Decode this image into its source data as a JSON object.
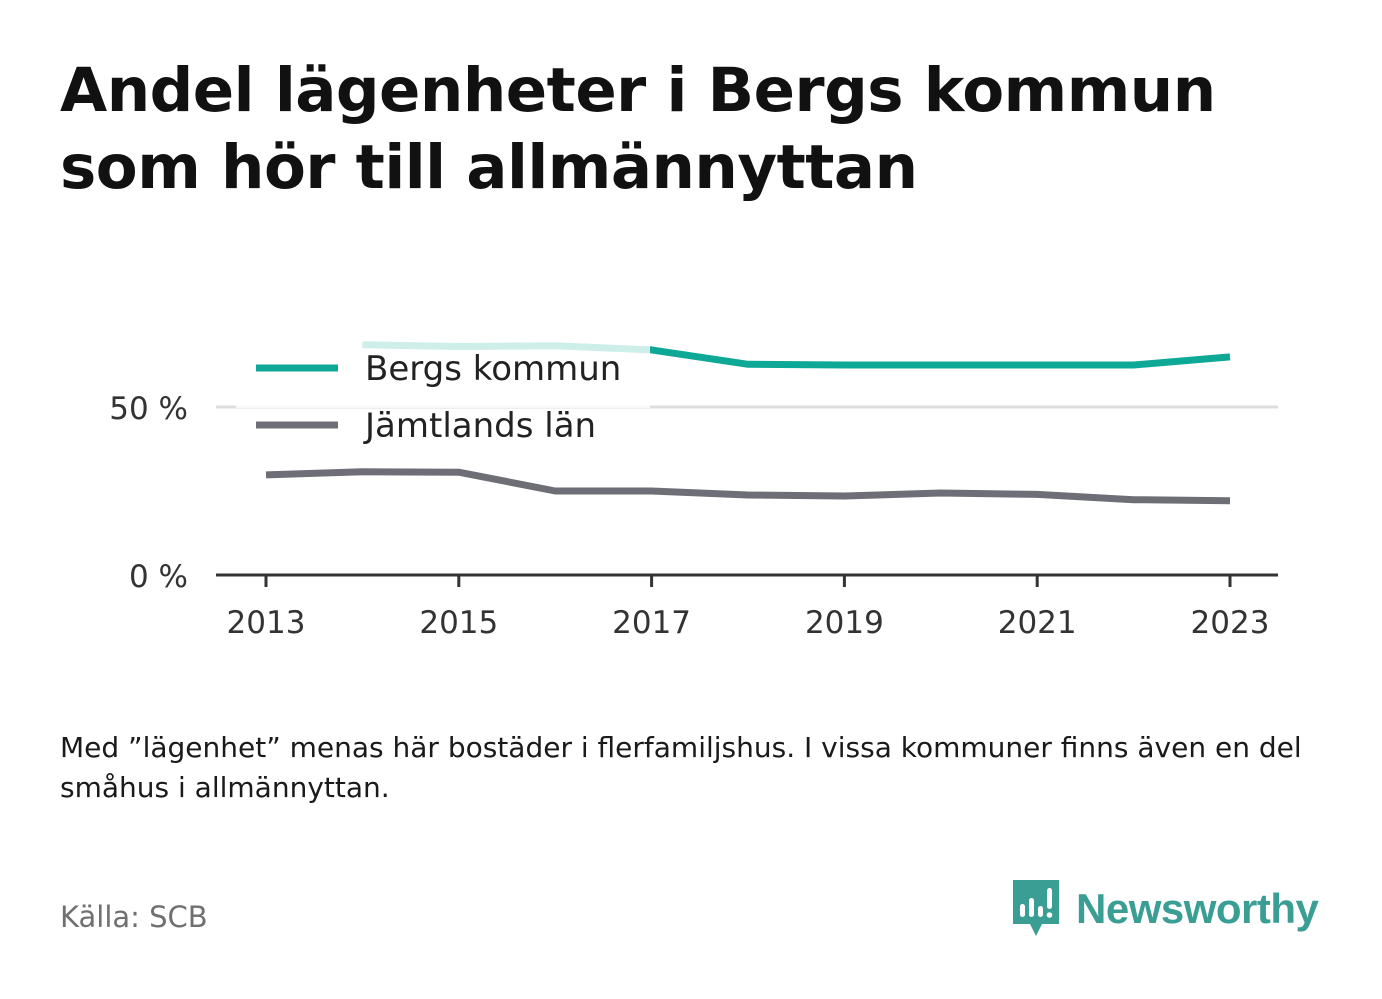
{
  "title": "Andel lägenheter i Bergs kommun som hör till allmännyttan",
  "note": "Med ”lägenhet” menas här bostäder i flerfamiljshus. I vissa kommuner finns även en del småhus i allmännyttan.",
  "source": "Källa: SCB",
  "brand": "Newsworthy",
  "colors": {
    "bergs": "#0ea896",
    "jamtland": "#6e6e76",
    "brand": "#3a9e94"
  },
  "chart_data": {
    "type": "line",
    "x": [
      2013,
      2014,
      2015,
      2016,
      2017,
      2018,
      2019,
      2020,
      2021,
      2022,
      2023
    ],
    "x_ticks": [
      "2013",
      "2015",
      "2017",
      "2019",
      "2021",
      "2023"
    ],
    "y_ticks": [
      "0 %",
      "50 %"
    ],
    "ylim": [
      0,
      70
    ],
    "grid": true,
    "legend_position": "top-left",
    "series": [
      {
        "name": "Bergs kommun",
        "color": "#0ea896",
        "values": [
          null,
          68.5,
          68.0,
          68.2,
          67.0,
          62.7,
          62.5,
          62.5,
          62.5,
          62.5,
          64.9
        ]
      },
      {
        "name": "Jämtlands län",
        "color": "#6e6e76",
        "values": [
          29.8,
          30.7,
          30.6,
          25.0,
          25.0,
          23.8,
          23.5,
          24.4,
          24.0,
          22.4,
          22.1
        ]
      }
    ]
  }
}
